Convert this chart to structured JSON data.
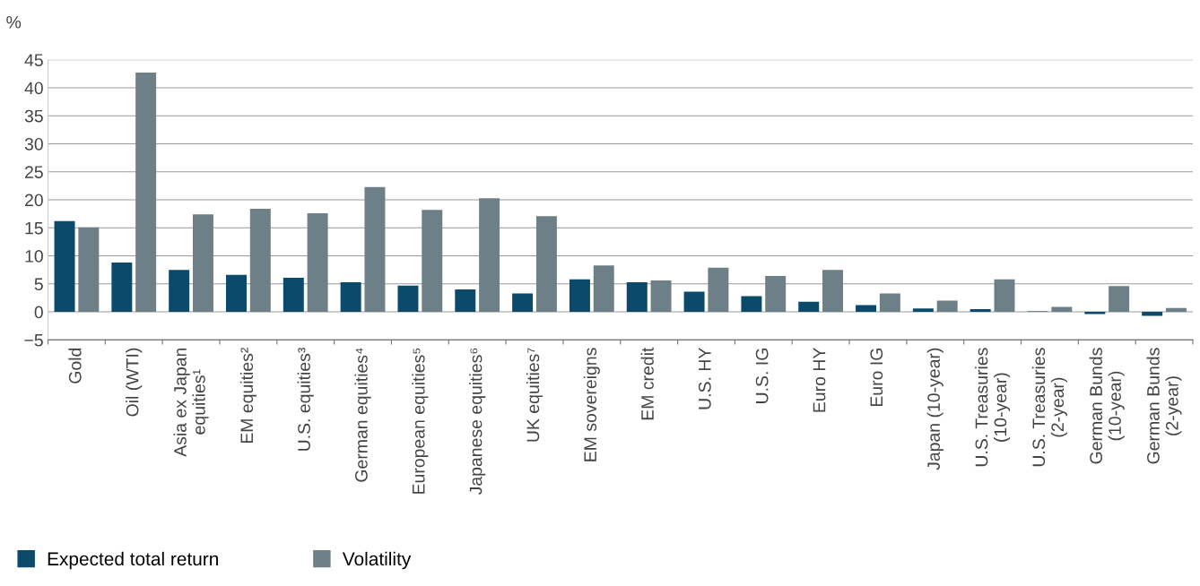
{
  "chart_data": {
    "type": "bar",
    "categories": [
      "Gold",
      "Oil (WTI)",
      "Asia ex Japan\nequities¹",
      "EM equities²",
      "U.S. equities³",
      "German equities⁴",
      "European equities⁵",
      "Japanese equities⁶",
      "UK equities⁷",
      "EM sovereigns",
      "EM credit",
      "U.S. HY",
      "U.S. IG",
      "Euro HY",
      "Euro IG",
      "Japan (10-year)",
      "U.S. Treasuries\n(10-year)",
      "U.S. Treasuries\n(2-year)",
      "German Bunds\n(10-year)",
      "German Bunds\n(2-year)"
    ],
    "series": [
      {
        "name": "Expected total return",
        "color": "#0b4a6b",
        "values": [
          16.2,
          8.8,
          7.5,
          6.6,
          6.1,
          5.3,
          4.7,
          4.0,
          3.3,
          5.8,
          5.3,
          3.6,
          2.8,
          1.8,
          1.2,
          0.6,
          0.5,
          0.1,
          -0.4,
          -0.7
        ]
      },
      {
        "name": "Volatility",
        "color": "#6e8087",
        "values": [
          15.1,
          42.7,
          17.4,
          18.4,
          17.6,
          22.3,
          18.2,
          20.3,
          17.1,
          8.3,
          5.6,
          7.9,
          6.4,
          7.5,
          3.3,
          2.0,
          5.8,
          0.9,
          4.6,
          0.7
        ]
      }
    ],
    "ylabel": "%",
    "ylim": [
      -5,
      45
    ],
    "yticks": [
      {
        "value": -5,
        "label": "−5"
      },
      0,
      5,
      10,
      15,
      20,
      25,
      30,
      35,
      40,
      45
    ],
    "grid": "y",
    "legend": "bottom left",
    "marker": "square"
  }
}
